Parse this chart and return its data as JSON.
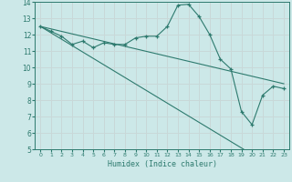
{
  "title": "",
  "xlabel": "Humidex (Indice chaleur)",
  "bg_color": "#cce8e8",
  "line_color": "#2d7a6e",
  "grid_color": "#c8d8d8",
  "xlim": [
    -0.5,
    23.5
  ],
  "ylim": [
    5,
    14
  ],
  "xticks": [
    0,
    1,
    2,
    3,
    4,
    5,
    6,
    7,
    8,
    9,
    10,
    11,
    12,
    13,
    14,
    15,
    16,
    17,
    18,
    19,
    20,
    21,
    22,
    23
  ],
  "yticks": [
    5,
    6,
    7,
    8,
    9,
    10,
    11,
    12,
    13,
    14
  ],
  "main_x": [
    0,
    1,
    2,
    3,
    4,
    5,
    6,
    7,
    8,
    9,
    10,
    11,
    12,
    13,
    14,
    15,
    16,
    17,
    18,
    19,
    20,
    21,
    22,
    23
  ],
  "main_y": [
    12.5,
    12.2,
    11.9,
    11.4,
    11.6,
    11.2,
    11.5,
    11.4,
    11.4,
    11.8,
    11.9,
    11.9,
    12.5,
    13.8,
    13.85,
    13.1,
    12.0,
    10.5,
    9.9,
    7.3,
    6.5,
    8.3,
    8.85,
    8.7
  ],
  "line1_x": [
    0,
    23
  ],
  "line1_y": [
    12.5,
    9.0
  ],
  "line2_x": [
    0,
    19.2
  ],
  "line2_y": [
    12.5,
    5.0
  ]
}
